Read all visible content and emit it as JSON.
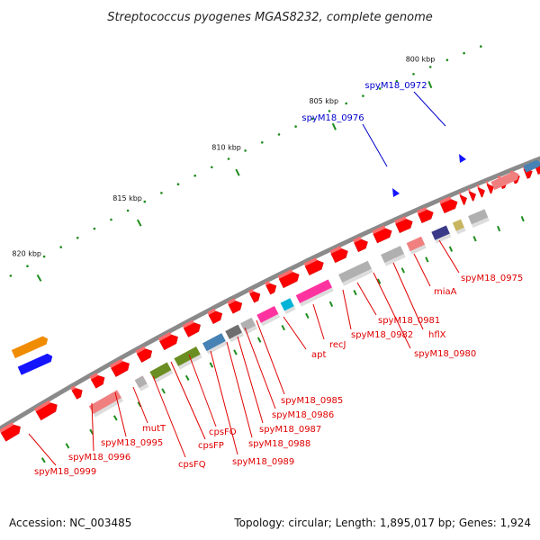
{
  "header": {
    "title": "Streptococcus pyogenes MGAS8232, complete genome"
  },
  "footer": {
    "accession": "Accession: NC_003485",
    "summary": "Topology: circular; Length: 1,895,017 bp; Genes: 1,924"
  },
  "ticks": [
    {
      "label": "800 kbp"
    },
    {
      "label": "805 kbp"
    },
    {
      "label": "810 kbp"
    },
    {
      "label": "815 kbp"
    },
    {
      "label": "820 kbp"
    }
  ],
  "colors": {
    "red": "#ff0000",
    "grey": "#b0b0b0",
    "pink": "#ff33a0",
    "cyan": "#00b4d8",
    "olive": "#6b8e23",
    "steelblue": "#4682b4",
    "darkgrey": "#6e6e6e",
    "navy": "#3a3a88",
    "khaki": "#c8b560",
    "orange": "#f08c00",
    "blue": "#1414ff",
    "salmon": "#f08080",
    "backbone": "#8a8a8a",
    "tick_green": "#1e8c1e",
    "label_red": "#e00000",
    "label_blue": "#0000cc"
  },
  "gene_labels": [
    {
      "text": "spyM18_0972",
      "color": "blue"
    },
    {
      "text": "spyM18_0976",
      "color": "blue"
    },
    {
      "text": "spyM18_0975",
      "color": "red"
    },
    {
      "text": "miaA",
      "color": "red"
    },
    {
      "text": "hflX",
      "color": "red"
    },
    {
      "text": "spyM18_0980",
      "color": "red"
    },
    {
      "text": "spyM18_0981",
      "color": "red"
    },
    {
      "text": "spyM18_0982",
      "color": "red"
    },
    {
      "text": "recJ",
      "color": "red"
    },
    {
      "text": "apt",
      "color": "red"
    },
    {
      "text": "spyM18_0985",
      "color": "red"
    },
    {
      "text": "spyM18_0986",
      "color": "red"
    },
    {
      "text": "spyM18_0987",
      "color": "red"
    },
    {
      "text": "spyM18_0988",
      "color": "red"
    },
    {
      "text": "spyM18_0989",
      "color": "red"
    },
    {
      "text": "cpsFO",
      "color": "red"
    },
    {
      "text": "cpsFP",
      "color": "red"
    },
    {
      "text": "cpsFQ",
      "color": "red"
    },
    {
      "text": "mutT",
      "color": "red"
    },
    {
      "text": "spyM18_0995",
      "color": "red"
    },
    {
      "text": "spyM18_0996",
      "color": "red"
    },
    {
      "text": "spyM18_0999",
      "color": "red"
    }
  ],
  "genes": [
    {
      "track": "fwd",
      "color": "red"
    },
    {
      "track": "fwd",
      "color": "red"
    },
    {
      "track": "fwd",
      "color": "red"
    },
    {
      "track": "fwd",
      "color": "red"
    },
    {
      "track": "fwd",
      "color": "red"
    },
    {
      "track": "fwd",
      "color": "red"
    },
    {
      "track": "fwd",
      "color": "red"
    },
    {
      "track": "fwd",
      "color": "red"
    },
    {
      "track": "fwd",
      "color": "red"
    },
    {
      "track": "fwd",
      "color": "red"
    },
    {
      "track": "fwd",
      "color": "red"
    },
    {
      "track": "fwd",
      "color": "red"
    },
    {
      "track": "fwd",
      "color": "red"
    },
    {
      "track": "fwd",
      "color": "red"
    },
    {
      "track": "fwd",
      "color": "red"
    },
    {
      "track": "fwd",
      "color": "red"
    },
    {
      "track": "fwd",
      "color": "red"
    },
    {
      "track": "fwd",
      "color": "red"
    },
    {
      "track": "fwd",
      "color": "red"
    },
    {
      "track": "fwd",
      "color": "red"
    },
    {
      "track": "fwd",
      "color": "red"
    },
    {
      "track": "fwd",
      "color": "red"
    },
    {
      "track": "fwd",
      "color": "red"
    },
    {
      "track": "fwd",
      "color": "red"
    },
    {
      "track": "fwd",
      "color": "red"
    },
    {
      "track": "fwd",
      "color": "red"
    },
    {
      "track": "fwd",
      "color": "red"
    },
    {
      "track": "fwd",
      "color": "red"
    },
    {
      "track": "rev",
      "color": "grey"
    },
    {
      "track": "rev",
      "color": "pink"
    },
    {
      "track": "rev",
      "color": "olive"
    },
    {
      "track": "rev",
      "color": "olive"
    },
    {
      "track": "rev",
      "color": "steelblue"
    },
    {
      "track": "rev",
      "color": "darkgrey"
    },
    {
      "track": "rev",
      "color": "grey"
    },
    {
      "track": "rev",
      "color": "pink"
    },
    {
      "track": "rev",
      "color": "cyan"
    },
    {
      "track": "rev",
      "color": "pink"
    },
    {
      "track": "rev",
      "color": "grey"
    },
    {
      "track": "rev",
      "color": "grey"
    },
    {
      "track": "rev",
      "color": "salmon"
    },
    {
      "track": "rev",
      "color": "navy"
    },
    {
      "track": "rev",
      "color": "khaki"
    },
    {
      "track": "rev",
      "color": "grey"
    },
    {
      "track": "rev",
      "color": "salmon"
    },
    {
      "track": "rev",
      "color": "grey"
    },
    {
      "track": "far",
      "color": "orange"
    },
    {
      "track": "far",
      "color": "blue"
    },
    {
      "track": "far",
      "color": "salmon"
    },
    {
      "track": "far",
      "color": "steelblue"
    }
  ]
}
